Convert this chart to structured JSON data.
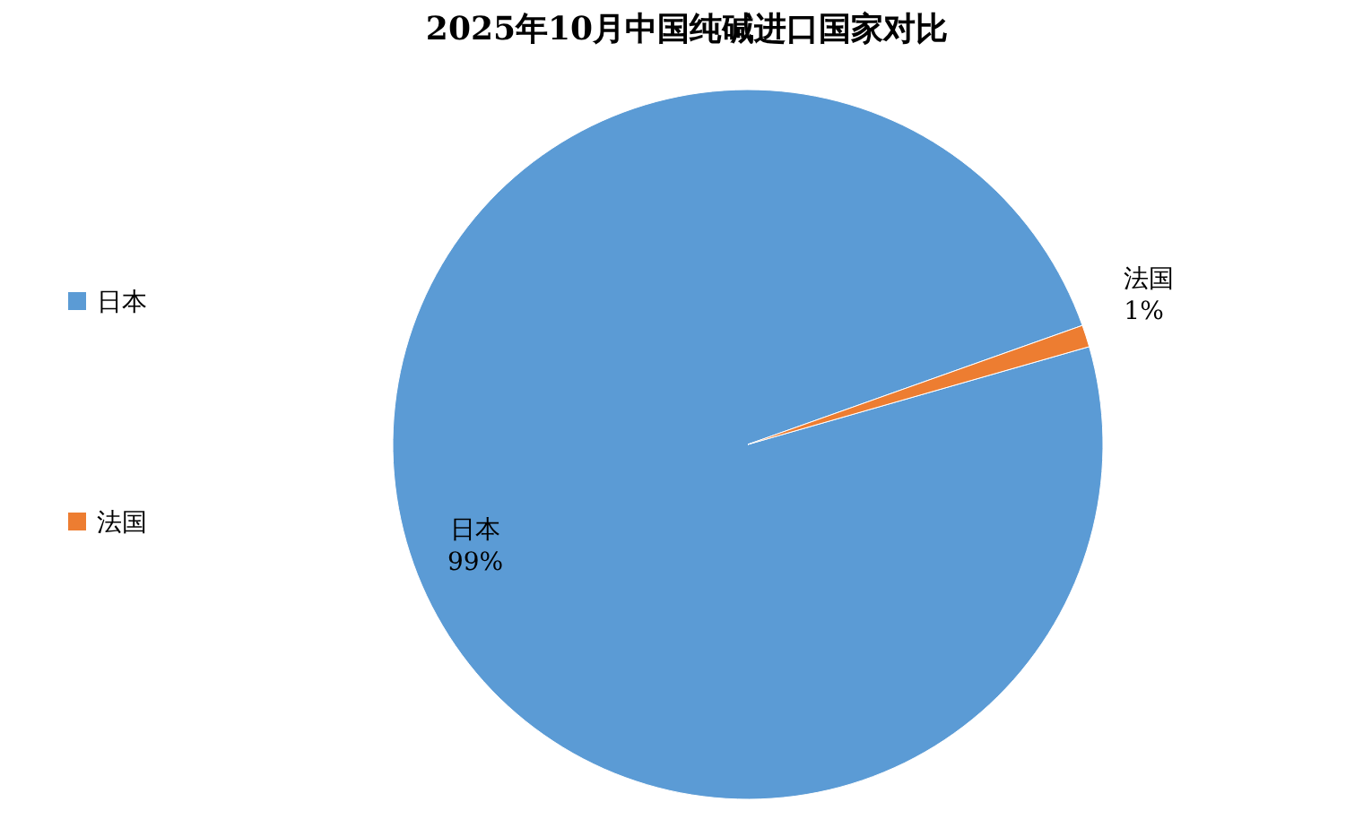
{
  "chart_data": {
    "type": "pie",
    "title": "2025年10月中国纯碱进口国家对比",
    "categories": [
      "日本",
      "法国"
    ],
    "values": [
      99,
      1
    ],
    "colors": [
      "#5b9bd5",
      "#ed7d31"
    ],
    "value_labels": [
      "99%",
      "1%"
    ],
    "legend": "left"
  }
}
